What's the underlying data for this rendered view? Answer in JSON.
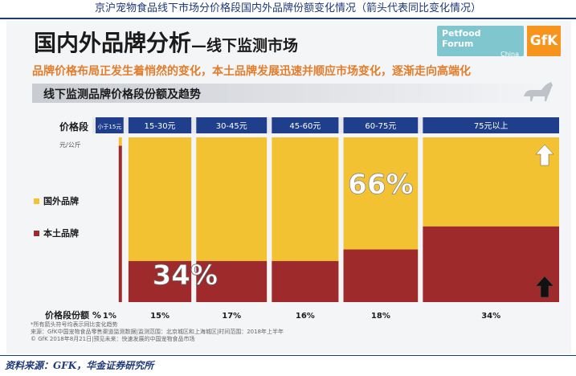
{
  "caption": "京沪宠物食品线下市场分价格段国内外品牌份额变化情况（箭头代表同比变化情况）",
  "slide": {
    "title": "国内外品牌分析",
    "title_sub": "—线下监测市场",
    "subtitle": "品牌价格布局正发生着悄然的变化，本土品牌发展迅速并顺应市场变化，逐渐走向高端化",
    "section_title": "线下监测品牌价格段份额及趋势",
    "logo_petfood_line1": "Petfood",
    "logo_petfood_line2": "Forum",
    "logo_petfood_line3": "China",
    "logo_gfk": "GfK",
    "note_lines": [
      "*所有箭头符号均表示同比变化趋势",
      "来源：GfK中国宠物食品零售渠道监测数据|监测范围：北京城区和上海城区|时间范围：2018年上半年",
      "© GfK 2018年8月21日|预见未来：快速发展的中国宠物食品市场"
    ]
  },
  "source": "资料来源：GFK，华金证券研究所",
  "chart_data": {
    "type": "bar",
    "subtype": "variable-width stacked 100%",
    "x_header_label": "价格段",
    "y_unit_label": "元/公斤",
    "share_label": "价格段份额 %",
    "categories": [
      "小于15元",
      "15-30元",
      "30-45元",
      "45-60元",
      "60-75元",
      "75元以上"
    ],
    "category_shares": [
      "1%",
      "15%",
      "17%",
      "16%",
      "18%",
      "34%"
    ],
    "category_share_values": [
      1,
      15,
      17,
      16,
      18,
      34
    ],
    "series": [
      {
        "name": "国外品牌",
        "color": "#f3c232",
        "values": [
          5,
          75,
          75,
          75,
          68,
          54
        ]
      },
      {
        "name": "本土品牌",
        "color": "#9e2a2b",
        "values": [
          95,
          25,
          25,
          25,
          32,
          46
        ]
      }
    ],
    "annotations": [
      {
        "text": "66%",
        "series": "国外品牌"
      },
      {
        "text": "34%",
        "series": "本土品牌"
      }
    ],
    "arrows": [
      {
        "category": "75元以上",
        "series": "国外品牌",
        "direction": "up",
        "color": "#ffffff"
      },
      {
        "category": "75元以上",
        "series": "本土品牌",
        "direction": "up",
        "color": "#111111"
      }
    ],
    "header_color": "#1f3f8c",
    "ylim": [
      0,
      100
    ]
  }
}
